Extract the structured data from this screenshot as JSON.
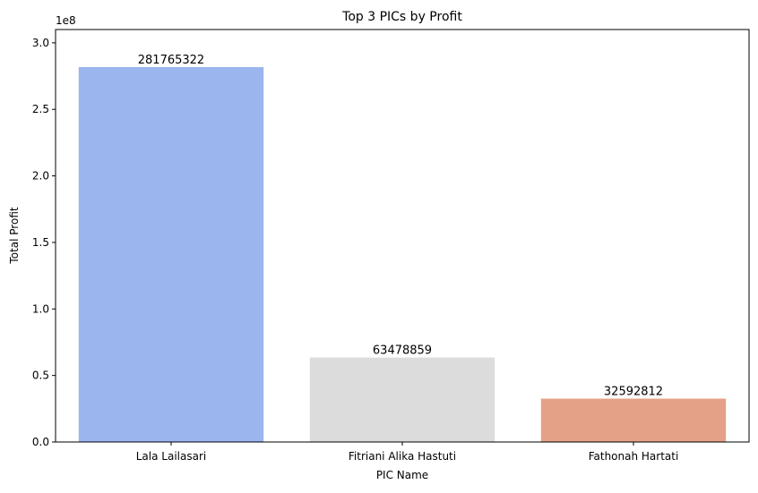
{
  "chart_data": {
    "type": "bar",
    "title": "Top 3 PICs by Profit",
    "xlabel": "PIC Name",
    "ylabel": "Total Profit",
    "y_offset_label": "1e8",
    "categories": [
      "Lala Lailasari",
      "Fitriani Alika Hastuti",
      "Fathonah Hartati"
    ],
    "values": [
      281765322,
      63478859,
      32592812
    ],
    "data_labels": [
      "281765322",
      "63478859",
      "32592812"
    ],
    "colors": [
      "#9bb5ef",
      "#dcdcdc",
      "#e5a188"
    ],
    "ylim": [
      0,
      310000000
    ],
    "y_ticks": [
      0,
      50000000,
      100000000,
      150000000,
      200000000,
      250000000,
      300000000
    ],
    "y_tick_labels": [
      "0.0",
      "0.5",
      "1.0",
      "1.5",
      "2.0",
      "2.5",
      "3.0"
    ],
    "grid": false,
    "legend": "none"
  }
}
